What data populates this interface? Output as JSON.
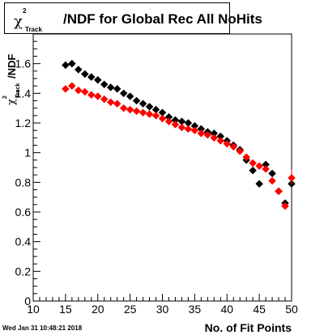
{
  "chart_data": {
    "type": "scatter",
    "title": "/NDF for Global Rec All NoHits",
    "title_chi": "χ",
    "title_sup": "2",
    "title_sub": "Track",
    "xlabel": "No. of Fit Points",
    "ylabel": "/NDF",
    "xlim": [
      10,
      50
    ],
    "ylim": [
      0,
      1.8
    ],
    "x_ticks": [
      10,
      15,
      20,
      25,
      30,
      35,
      40,
      45,
      50
    ],
    "x_tick_labels": [
      "10",
      "15",
      "20",
      "25",
      "30",
      "35",
      "40",
      "45",
      "50"
    ],
    "y_ticks": [
      0,
      0.2,
      0.4,
      0.6,
      0.8,
      1.0,
      1.2,
      1.4,
      1.6
    ],
    "y_tick_labels": [
      "0",
      "0.2",
      "0.4",
      "0.6",
      "0.8",
      "1",
      "1.2",
      "1.4",
      "1.6"
    ],
    "grid": false,
    "series": [
      {
        "color": "#000000",
        "x": [
          15,
          16,
          17,
          18,
          19,
          20,
          21,
          22,
          23,
          24,
          25,
          26,
          27,
          28,
          29,
          30,
          31,
          32,
          33,
          34,
          35,
          36,
          37,
          38,
          39,
          40,
          41,
          42,
          43,
          44,
          45,
          46,
          47,
          48,
          49,
          50
        ],
        "y": [
          1.59,
          1.6,
          1.56,
          1.53,
          1.51,
          1.49,
          1.46,
          1.44,
          1.43,
          1.4,
          1.38,
          1.35,
          1.33,
          1.31,
          1.29,
          1.27,
          1.24,
          1.22,
          1.21,
          1.2,
          1.18,
          1.16,
          1.14,
          1.13,
          1.11,
          1.08,
          1.05,
          1.02,
          0.95,
          0.88,
          0.79,
          0.92,
          0.86,
          0.74,
          0.66,
          0.79
        ]
      },
      {
        "color": "#ff0000",
        "x": [
          15,
          16,
          17,
          18,
          19,
          20,
          21,
          22,
          23,
          24,
          25,
          26,
          27,
          28,
          29,
          30,
          31,
          32,
          33,
          34,
          35,
          36,
          37,
          38,
          39,
          40,
          41,
          42,
          43,
          44,
          45,
          46,
          47,
          48,
          49,
          50
        ],
        "y": [
          1.43,
          1.45,
          1.42,
          1.41,
          1.39,
          1.38,
          1.36,
          1.34,
          1.33,
          1.3,
          1.29,
          1.28,
          1.27,
          1.26,
          1.25,
          1.23,
          1.21,
          1.19,
          1.17,
          1.16,
          1.15,
          1.13,
          1.12,
          1.1,
          1.08,
          1.06,
          1.04,
          1.01,
          0.97,
          0.93,
          0.91,
          0.89,
          0.81,
          0.74,
          0.64,
          0.83
        ]
      }
    ]
  },
  "footer": {
    "timestamp": "Wed Jan 31 10:48:21 2018"
  }
}
